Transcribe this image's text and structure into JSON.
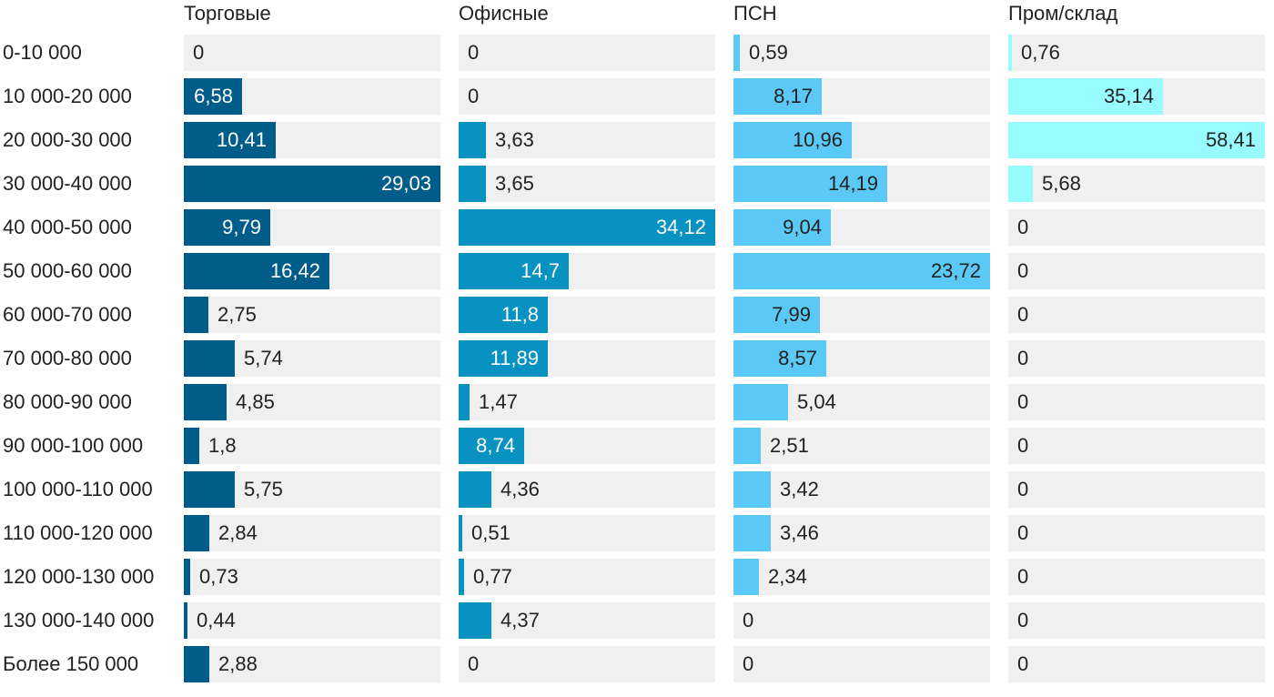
{
  "chart_data": {
    "type": "bar",
    "orientation": "horizontal",
    "categories": [
      "0-10 000",
      "10 000-20 000",
      "20 000-30 000",
      "30 000-40 000",
      "40 000-50 000",
      "50 000-60 000",
      "60 000-70 000",
      "70 000-80 000",
      "80 000-90 000",
      "90 000-100 000",
      "100 000-110 000",
      "110 000-120 000",
      "120 000-130 000",
      "130 000-140 000",
      "Более 150 000"
    ],
    "series": [
      {
        "name": "Торговые",
        "color": "#005d89",
        "values": [
          0,
          6.58,
          10.41,
          29.03,
          9.79,
          16.42,
          2.75,
          5.74,
          4.85,
          1.8,
          5.75,
          2.84,
          0.73,
          0.44,
          2.88
        ],
        "labels": [
          "0",
          "6,58",
          "10,41",
          "29,03",
          "9,79",
          "16,42",
          "2,75",
          "5,74",
          "4,85",
          "1,8",
          "5,75",
          "2,84",
          "0,73",
          "0,44",
          "2,88"
        ]
      },
      {
        "name": "Офисные",
        "color": "#0892c2",
        "values": [
          0,
          0,
          3.63,
          3.65,
          34.12,
          14.7,
          11.8,
          11.89,
          1.47,
          8.74,
          4.36,
          0.51,
          0.77,
          4.37,
          0
        ],
        "labels": [
          "0",
          "0",
          "3,63",
          "3,65",
          "34,12",
          "14,7",
          "11,8",
          "11,89",
          "1,47",
          "8,74",
          "4,36",
          "0,51",
          "0,77",
          "4,37",
          "0"
        ]
      },
      {
        "name": "ПСН",
        "color": "#5bc8f5",
        "values": [
          0.59,
          8.17,
          10.96,
          14.19,
          9.04,
          23.72,
          7.99,
          8.57,
          5.04,
          2.51,
          3.42,
          3.46,
          2.34,
          0,
          0
        ],
        "labels": [
          "0,59",
          "8,17",
          "10,96",
          "14,19",
          "9,04",
          "23,72",
          "7,99",
          "8,57",
          "5,04",
          "2,51",
          "3,42",
          "3,46",
          "2,34",
          "0",
          "0"
        ]
      },
      {
        "name": "Пром/склад",
        "color": "#98fbff",
        "values": [
          0.76,
          35.14,
          58.41,
          5.68,
          0,
          0,
          0,
          0,
          0,
          0,
          0,
          0,
          0,
          0,
          0
        ],
        "labels": [
          "0,76",
          "35,14",
          "58,41",
          "5,68",
          "0",
          "0",
          "0",
          "0",
          "0",
          "0",
          "0",
          "0",
          "0",
          "0",
          "0"
        ]
      }
    ],
    "value_label_colors": {
      "inside_dark_bar": "#ffffff",
      "inside_light_bar": "#222222",
      "outside": "#222222"
    },
    "track_color": "#f0f0f0",
    "legend": "none",
    "grid": false
  }
}
